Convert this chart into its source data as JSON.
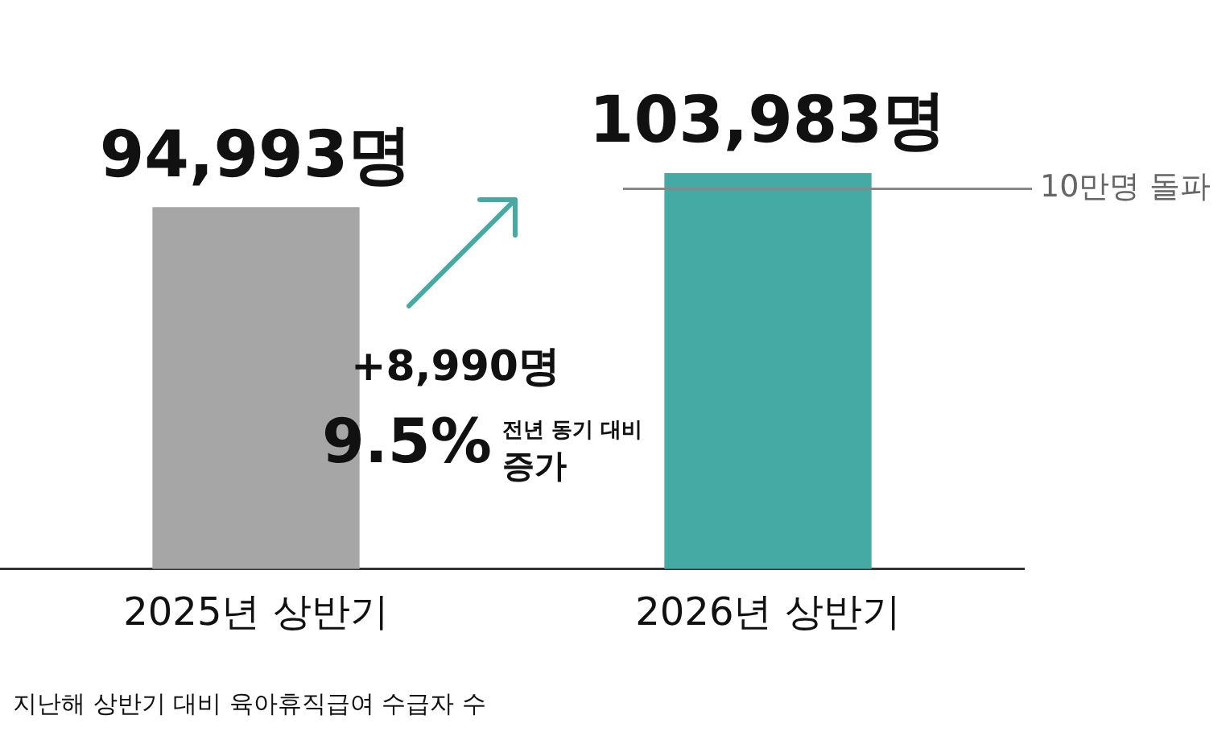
{
  "chart_data": {
    "type": "bar",
    "categories": [
      "2025년 상반기",
      "2026년 상반기"
    ],
    "values": [
      94993,
      103983
    ],
    "colors": [
      "#a6a6a6",
      "#45aaa4"
    ],
    "value_labels": [
      "94,993명",
      "103,983명"
    ],
    "ref_lines": [
      {
        "axis": "y",
        "value": 100000,
        "label": "10만명 돌파",
        "color": "#888888"
      }
    ],
    "annotations": [
      "+8,990명",
      "9.5%",
      "전년 동기 대비",
      "증가",
      "지난해 상반기 대비 육아휴직급여 수급자 수"
    ],
    "grid": false,
    "legend": false
  }
}
